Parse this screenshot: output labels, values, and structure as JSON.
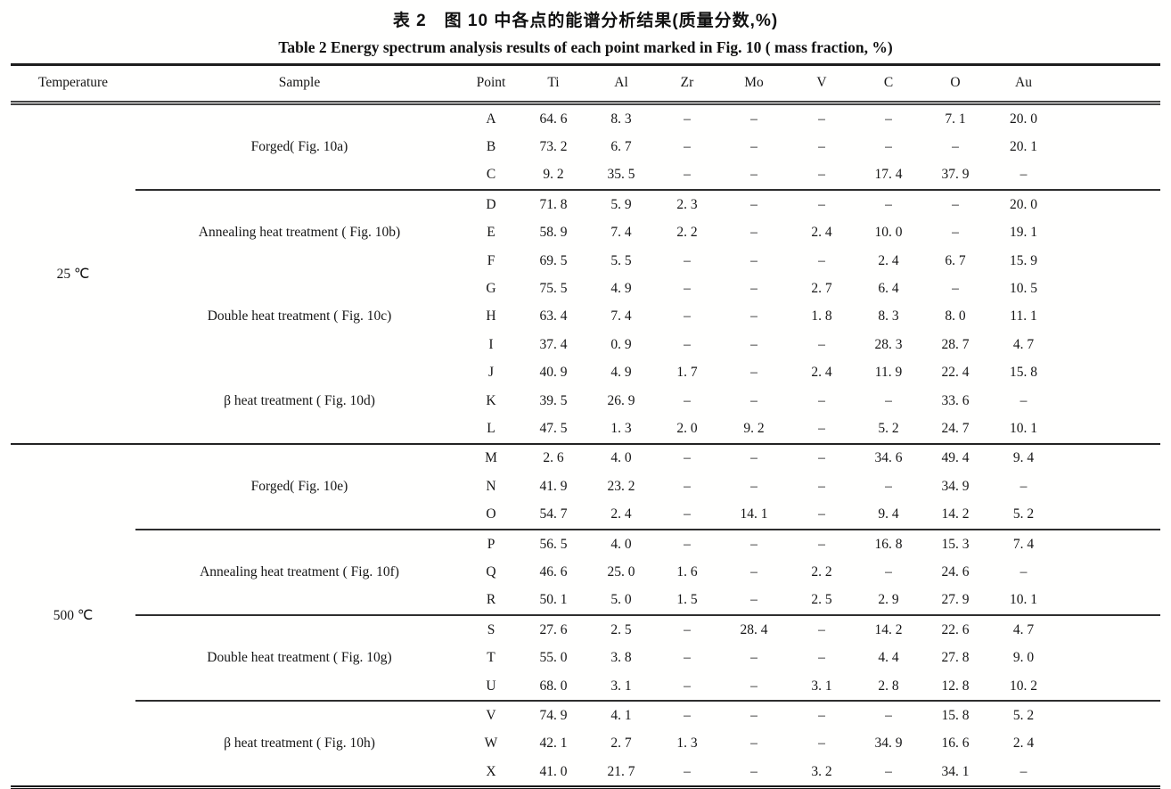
{
  "caption_zh": "表 2　图 10 中各点的能谱分析结果(质量分数,%)",
  "caption_en": "Table 2  Energy spectrum analysis results of each point marked in Fig. 10 ( mass fraction, %)",
  "columns": [
    "Temperature",
    "Sample",
    "Point",
    "Ti",
    "Al",
    "Zr",
    "Mo",
    "V",
    "C",
    "O",
    "Au"
  ],
  "dash": "–",
  "groups": [
    {
      "temperature": "25 ℃",
      "samples": [
        {
          "label": "Forged( Fig. 10a)",
          "divider_before": false,
          "rows": [
            {
              "point": "A",
              "values": [
                "64. 6",
                "8. 3",
                "–",
                "–",
                "–",
                "–",
                "7. 1",
                "20. 0"
              ]
            },
            {
              "point": "B",
              "values": [
                "73. 2",
                "6. 7",
                "–",
                "–",
                "–",
                "–",
                "–",
                "20. 1"
              ]
            },
            {
              "point": "C",
              "values": [
                "9. 2",
                "35. 5",
                "–",
                "–",
                "–",
                "17. 4",
                "37. 9",
                "–"
              ]
            }
          ]
        },
        {
          "label": "Annealing heat treatment ( Fig. 10b)",
          "divider_before": true,
          "rows": [
            {
              "point": "D",
              "values": [
                "71. 8",
                "5. 9",
                "2. 3",
                "–",
                "–",
                "–",
                "–",
                "20. 0"
              ]
            },
            {
              "point": "E",
              "values": [
                "58. 9",
                "7. 4",
                "2. 2",
                "–",
                "2. 4",
                "10. 0",
                "–",
                "19. 1"
              ]
            },
            {
              "point": "F",
              "values": [
                "69. 5",
                "5. 5",
                "–",
                "–",
                "–",
                "2. 4",
                "6. 7",
                "15. 9"
              ]
            }
          ]
        },
        {
          "label": "Double heat treatment ( Fig. 10c)",
          "divider_before": false,
          "rows": [
            {
              "point": "G",
              "values": [
                "75. 5",
                "4. 9",
                "–",
                "–",
                "2. 7",
                "6. 4",
                "–",
                "10. 5"
              ]
            },
            {
              "point": "H",
              "values": [
                "63. 4",
                "7. 4",
                "–",
                "–",
                "1. 8",
                "8. 3",
                "8. 0",
                "11. 1"
              ]
            },
            {
              "point": "I",
              "values": [
                "37. 4",
                "0. 9",
                "–",
                "–",
                "–",
                "28. 3",
                "28. 7",
                "4. 7"
              ]
            }
          ]
        },
        {
          "label": "β heat treatment ( Fig. 10d)",
          "divider_before": false,
          "rows": [
            {
              "point": "J",
              "values": [
                "40. 9",
                "4. 9",
                "1. 7",
                "–",
                "2. 4",
                "11. 9",
                "22. 4",
                "15. 8"
              ]
            },
            {
              "point": "K",
              "values": [
                "39. 5",
                "26. 9",
                "–",
                "–",
                "–",
                "–",
                "33. 6",
                "–"
              ]
            },
            {
              "point": "L",
              "values": [
                "47. 5",
                "1. 3",
                "2. 0",
                "9. 2",
                "–",
                "5. 2",
                "24. 7",
                "10. 1"
              ]
            }
          ]
        }
      ]
    },
    {
      "temperature": "500 ℃",
      "samples": [
        {
          "label": "Forged( Fig. 10e)",
          "divider_before": false,
          "rows": [
            {
              "point": "M",
              "values": [
                "2. 6",
                "4. 0",
                "–",
                "–",
                "–",
                "34. 6",
                "49. 4",
                "9. 4"
              ]
            },
            {
              "point": "N",
              "values": [
                "41. 9",
                "23. 2",
                "–",
                "–",
                "–",
                "–",
                "34. 9",
                "–"
              ]
            },
            {
              "point": "O",
              "values": [
                "54. 7",
                "2. 4",
                "–",
                "14. 1",
                "–",
                "9. 4",
                "14. 2",
                "5. 2"
              ]
            }
          ]
        },
        {
          "label": "Annealing heat treatment ( Fig. 10f)",
          "divider_before": true,
          "rows": [
            {
              "point": "P",
              "values": [
                "56. 5",
                "4. 0",
                "–",
                "–",
                "–",
                "16. 8",
                "15. 3",
                "7. 4"
              ]
            },
            {
              "point": "Q",
              "values": [
                "46. 6",
                "25. 0",
                "1. 6",
                "–",
                "2. 2",
                "–",
                "24. 6",
                "–"
              ]
            },
            {
              "point": "R",
              "values": [
                "50. 1",
                "5. 0",
                "1. 5",
                "–",
                "2. 5",
                "2. 9",
                "27. 9",
                "10. 1"
              ]
            }
          ]
        },
        {
          "label": "Double heat treatment ( Fig. 10g)",
          "divider_before": true,
          "rows": [
            {
              "point": "S",
              "values": [
                "27. 6",
                "2. 5",
                "–",
                "28. 4",
                "–",
                "14. 2",
                "22. 6",
                "4. 7"
              ]
            },
            {
              "point": "T",
              "values": [
                "55. 0",
                "3. 8",
                "–",
                "–",
                "–",
                "4. 4",
                "27. 8",
                "9. 0"
              ]
            },
            {
              "point": "U",
              "values": [
                "68. 0",
                "3. 1",
                "–",
                "–",
                "3. 1",
                "2. 8",
                "12. 8",
                "10. 2"
              ]
            }
          ]
        },
        {
          "label": "β heat treatment ( Fig. 10h)",
          "divider_before": true,
          "rows": [
            {
              "point": "V",
              "values": [
                "74. 9",
                "4. 1",
                "–",
                "–",
                "–",
                "–",
                "15. 8",
                "5. 2"
              ]
            },
            {
              "point": "W",
              "values": [
                "42. 1",
                "2. 7",
                "1. 3",
                "–",
                "–",
                "34. 9",
                "16. 6",
                "2. 4"
              ]
            },
            {
              "point": "X",
              "values": [
                "41. 0",
                "21. 7",
                "–",
                "–",
                "3. 2",
                "–",
                "34. 1",
                "–"
              ]
            }
          ]
        }
      ]
    }
  ]
}
